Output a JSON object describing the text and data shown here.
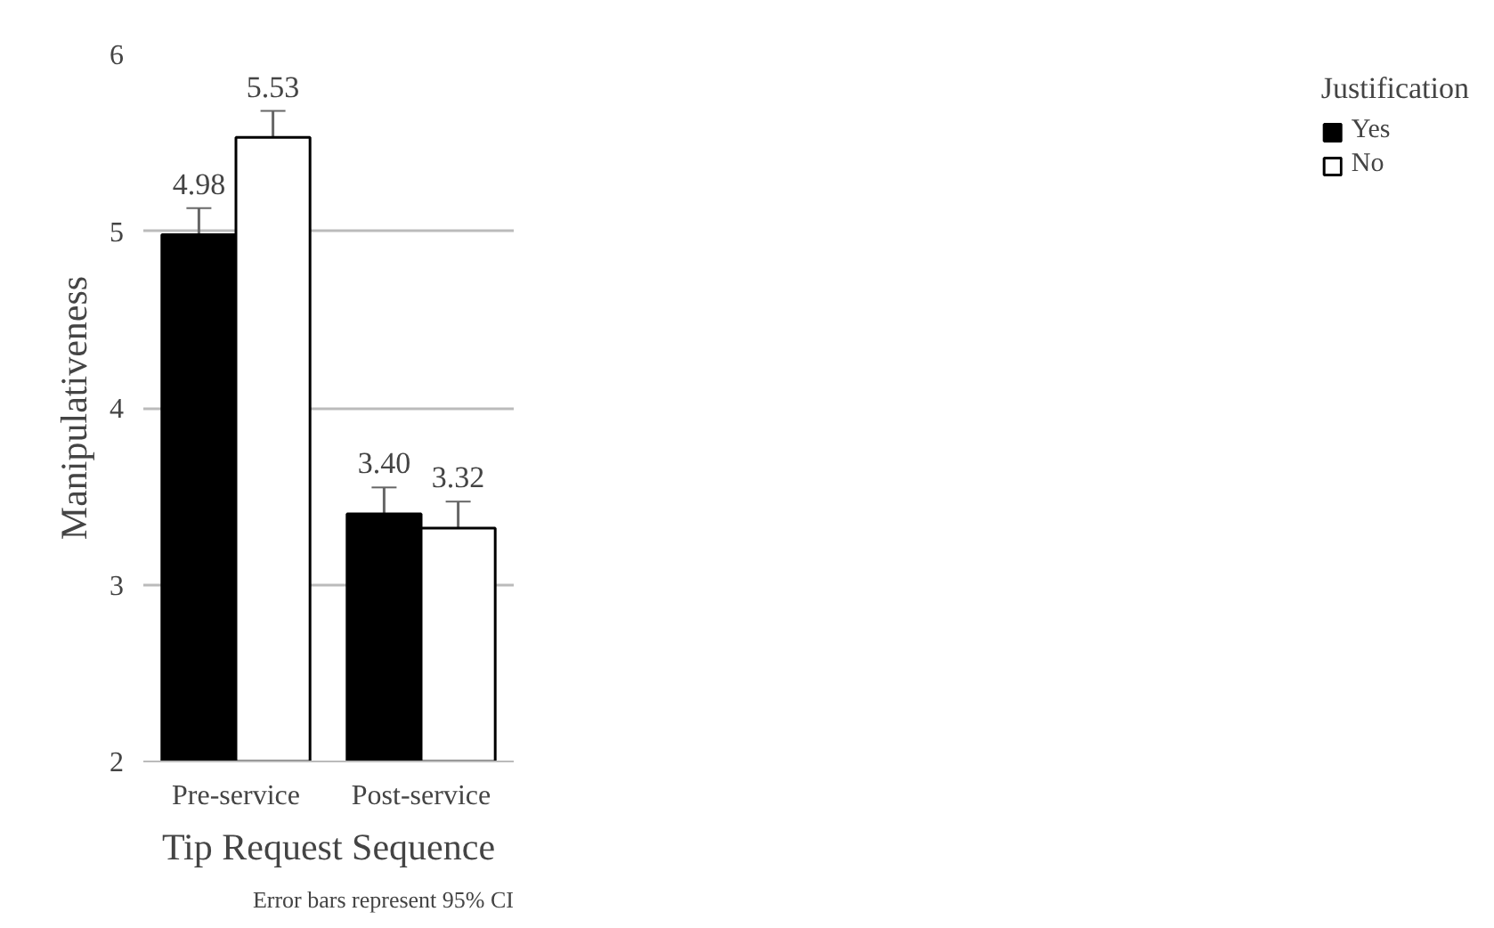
{
  "chart_data": {
    "type": "bar",
    "xlabel": "Tip Request Sequence",
    "ylabel": "Manipulativeness",
    "legend_title": "Justification",
    "categories": [
      "Pre-service",
      "Post-service"
    ],
    "series": [
      {
        "name": "Yes",
        "color": "#000000",
        "values": [
          4.98,
          3.4
        ],
        "errors": [
          0.15,
          0.15
        ],
        "value_labels": [
          "4.98",
          "3.40"
        ]
      },
      {
        "name": "No",
        "color": "#ffffff",
        "values": [
          5.53,
          3.32
        ],
        "errors": [
          0.15,
          0.15
        ],
        "value_labels": [
          "5.53",
          "3.32"
        ]
      }
    ],
    "ylim": [
      2,
      6
    ],
    "yticks": [
      2,
      3,
      4,
      5,
      6
    ],
    "grid": "y",
    "legend": "right",
    "annotations": [
      "Error bars represent 95% CI"
    ]
  }
}
